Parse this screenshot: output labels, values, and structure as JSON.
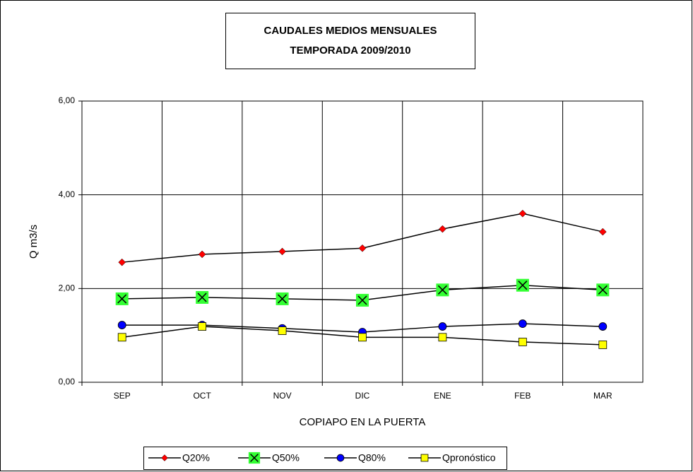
{
  "chart_data": {
    "type": "line",
    "title": "CAUDALES MEDIOS MENSUALES",
    "subtitle": "TEMPORADA 2009/2010",
    "x_label": "COPIAPO EN LA PUERTA",
    "y_label": "Q m3/s",
    "categories": [
      "SEP",
      "OCT",
      "NOV",
      "DIC",
      "ENE",
      "FEB",
      "MAR"
    ],
    "line_color": "#000000",
    "series": [
      {
        "name": "Q20%",
        "color": "#ff0000",
        "marker": "diamond",
        "values": [
          2.56,
          2.73,
          2.79,
          2.86,
          3.27,
          3.6,
          3.21
        ]
      },
      {
        "name": "Q50%",
        "color": "#33ff33",
        "marker": "x-square",
        "values": [
          1.78,
          1.81,
          1.78,
          1.75,
          1.97,
          2.07,
          1.97
        ]
      },
      {
        "name": "Q80%",
        "color": "#0000ff",
        "marker": "circle",
        "values": [
          1.22,
          1.22,
          1.15,
          1.07,
          1.19,
          1.25,
          1.19
        ]
      },
      {
        "name": "Qpronóstico",
        "color": "#ffff00",
        "marker": "square",
        "values": [
          0.96,
          1.19,
          1.1,
          0.96,
          0.96,
          0.86,
          0.8
        ]
      }
    ],
    "ylim": [
      0,
      6
    ],
    "yticks": [
      {
        "value": 0,
        "label": "0,00"
      },
      {
        "value": 2,
        "label": "2,00"
      },
      {
        "value": 4,
        "label": "4,00"
      },
      {
        "value": 6,
        "label": "6,00"
      }
    ],
    "grid": true,
    "legend": "bottom"
  }
}
